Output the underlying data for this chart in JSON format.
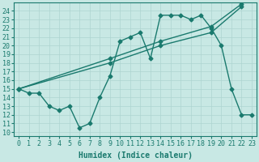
{
  "line1_x": [
    0,
    1,
    2,
    3,
    4,
    5,
    6,
    7,
    8,
    9,
    10,
    11,
    12,
    13,
    14,
    15,
    16,
    17,
    18,
    19,
    20,
    21,
    22,
    23
  ],
  "line1_y": [
    15,
    14.5,
    14.5,
    13,
    12.5,
    13,
    10.5,
    11,
    14,
    16.5,
    20.5,
    21,
    21.5,
    18.5,
    23.5,
    23.5,
    23.5,
    23,
    23.5,
    22,
    20,
    15,
    12,
    12
  ],
  "line2_x": [
    0,
    9,
    14,
    19,
    22
  ],
  "line2_y": [
    15,
    18.5,
    20.5,
    22.2,
    24.8
  ],
  "line3_x": [
    0,
    9,
    14,
    19,
    22
  ],
  "line3_y": [
    15,
    18.0,
    20.0,
    21.5,
    24.5
  ],
  "color": "#1a7a6e",
  "bg_color": "#c8e8e4",
  "grid_color": "#aed4d0",
  "xlabel": "Humidex (Indice chaleur)",
  "xlim": [
    -0.5,
    23.5
  ],
  "ylim": [
    9.5,
    25
  ],
  "xticks": [
    0,
    1,
    2,
    3,
    4,
    5,
    6,
    7,
    8,
    9,
    10,
    11,
    12,
    13,
    14,
    15,
    16,
    17,
    18,
    19,
    20,
    21,
    22,
    23
  ],
  "yticks": [
    10,
    11,
    12,
    13,
    14,
    15,
    16,
    17,
    18,
    19,
    20,
    21,
    22,
    23,
    24
  ],
  "marker": "D",
  "markersize": 2.5,
  "linewidth": 1.0,
  "xlabel_fontsize": 7,
  "tick_fontsize": 6
}
